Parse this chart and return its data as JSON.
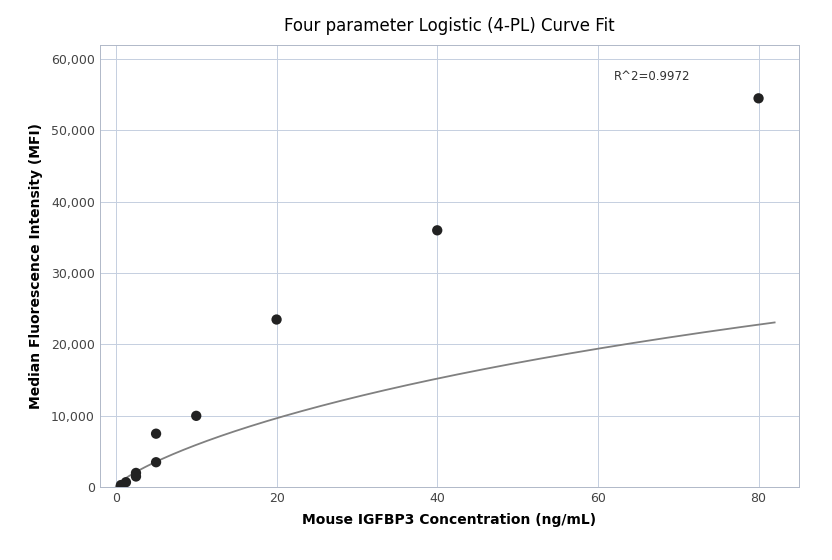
{
  "title": "Four parameter Logistic (4-PL) Curve Fit",
  "xlabel": "Mouse IGFBP3 Concentration (ng/mL)",
  "ylabel": "Median Fluorescence Intensity (MFI)",
  "scatter_x": [
    0.625,
    1.25,
    2.5,
    2.5,
    5.0,
    5.0,
    10.0,
    20.0,
    40.0,
    80.0
  ],
  "scatter_y": [
    300,
    700,
    1500,
    2000,
    3500,
    7500,
    10000,
    23500,
    36000,
    54500
  ],
  "r_squared": "R^2=0.9972",
  "r2_x": 62,
  "r2_y": 58500,
  "xlim": [
    -2,
    85
  ],
  "ylim": [
    0,
    62000
  ],
  "xticks": [
    0,
    20,
    40,
    60,
    80
  ],
  "yticks": [
    0,
    10000,
    20000,
    30000,
    40000,
    50000,
    60000
  ],
  "ytick_labels": [
    "0",
    "10,000",
    "20,000",
    "30,000",
    "40,000",
    "50,000",
    "60,000"
  ],
  "background_color": "#ffffff",
  "grid_color": "#c5cfe0",
  "line_color": "#808080",
  "dot_color": "#222222",
  "dot_size": 55,
  "line_width": 1.3,
  "title_fontsize": 12,
  "label_fontsize": 10,
  "tick_fontsize": 9
}
